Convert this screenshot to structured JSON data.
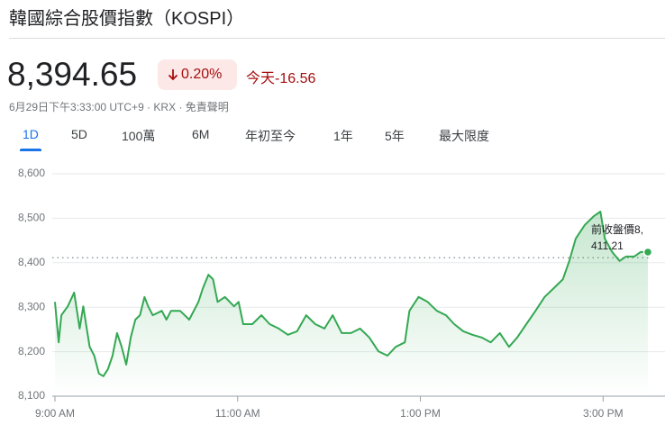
{
  "header": {
    "title": "韓國綜合股價指數（KOSPI）",
    "price": "8,394.65",
    "change_percent": "0.20%",
    "today_label": "今天",
    "change": "-16.56",
    "timestamp": "6月29日下午3:33:00 UTC+9",
    "exchange": "KRX",
    "disclaimer": "免責聲明"
  },
  "tabs": [
    "1D",
    "5D",
    "100萬",
    "6M",
    "年初至今",
    "1年",
    "5年",
    "最大限度"
  ],
  "selected_tab": 0,
  "chart_data": {
    "type": "line",
    "color": "#34a853",
    "grid": true,
    "x": [
      9.0,
      9.04,
      9.07,
      9.14,
      9.21,
      9.27,
      9.31,
      9.34,
      9.38,
      9.43,
      9.48,
      9.53,
      9.58,
      9.63,
      9.68,
      9.73,
      9.78,
      9.83,
      9.88,
      9.93,
      9.98,
      10.02,
      10.07,
      10.17,
      10.22,
      10.27,
      10.37,
      10.47,
      10.57,
      10.62,
      10.68,
      10.73,
      10.78,
      10.86,
      10.96,
      11.01,
      11.06,
      11.16,
      11.26,
      11.35,
      11.45,
      11.55,
      11.65,
      11.75,
      11.85,
      11.95,
      12.04,
      12.14,
      12.24,
      12.34,
      12.44,
      12.54,
      12.64,
      12.73,
      12.83,
      12.88,
      12.98,
      13.08,
      13.18,
      13.28,
      13.37,
      13.47,
      13.57,
      13.67,
      13.77,
      13.87,
      13.97,
      14.06,
      14.16,
      14.26,
      14.36,
      14.46,
      14.56,
      14.63,
      14.7,
      14.8,
      14.9,
      14.97,
      15.02,
      15.1,
      15.18,
      15.25,
      15.34,
      15.41,
      15.49
    ],
    "values": [
      8312,
      8221,
      8282,
      8302,
      8333,
      8252,
      8302,
      8262,
      8211,
      8191,
      8151,
      8145,
      8161,
      8191,
      8242,
      8211,
      8171,
      8232,
      8272,
      8282,
      8323,
      8302,
      8282,
      8292,
      8272,
      8292,
      8292,
      8272,
      8312,
      8343,
      8373,
      8363,
      8312,
      8323,
      8302,
      8312,
      8262,
      8262,
      8282,
      8262,
      8252,
      8238,
      8246,
      8282,
      8262,
      8252,
      8282,
      8242,
      8242,
      8252,
      8232,
      8201,
      8191,
      8211,
      8221,
      8292,
      8323,
      8312,
      8292,
      8282,
      8262,
      8246,
      8238,
      8232,
      8221,
      8242,
      8211,
      8232,
      8262,
      8292,
      8323,
      8343,
      8363,
      8404,
      8454,
      8485,
      8505,
      8515,
      8454,
      8424,
      8404,
      8414,
      8414,
      8424,
      8424
    ],
    "xlim": [
      9,
      15.5
    ],
    "xticks": [
      {
        "value": 9,
        "label": "9:00 AM"
      },
      {
        "value": 11,
        "label": "11:00 AM"
      },
      {
        "value": 13,
        "label": "1:00 PM"
      },
      {
        "value": 15,
        "label": "3:00 PM"
      }
    ],
    "ylim": [
      8100,
      8600
    ],
    "yticks": [
      {
        "value": 8100,
        "label": "8,100"
      },
      {
        "value": 8200,
        "label": "8,200"
      },
      {
        "value": 8300,
        "label": "8,300"
      },
      {
        "value": 8400,
        "label": "8,400"
      },
      {
        "value": 8500,
        "label": "8,500"
      },
      {
        "value": 8600,
        "label": "8,600"
      }
    ],
    "previous_close_label": "前收盤價",
    "previous_close": {
      "value": 8411.21,
      "label": "8,411.21"
    }
  }
}
